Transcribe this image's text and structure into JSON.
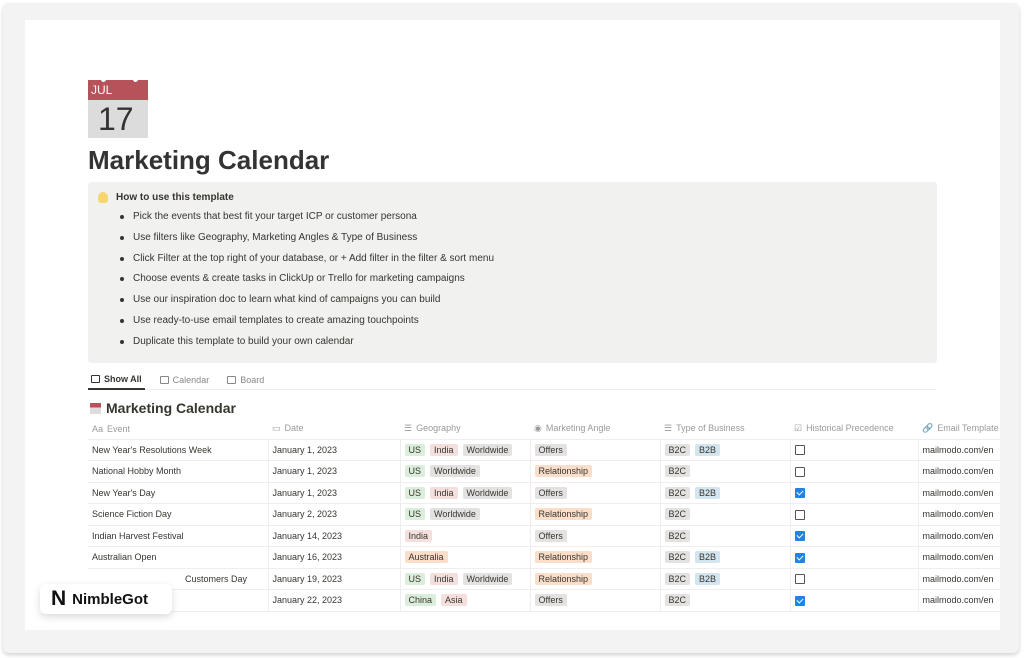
{
  "page": {
    "icon": {
      "name": "calendar-icon",
      "month": "JUL",
      "day": "17"
    },
    "title": "Marketing Calendar"
  },
  "callout": {
    "heading": "How to use this template",
    "items": [
      "Pick the events that best fit your target ICP or customer persona",
      "Use filters like Geography, Marketing Angles & Type of Business",
      "Click Filter at the top right of your database, or + Add filter in the filter & sort menu",
      "Choose events & create tasks in ClickUp or Trello for marketing campaigns",
      "Use our inspiration doc to learn what kind of campaigns you can build",
      "Use ready-to-use email templates to create amazing touchpoints",
      "Duplicate this template to build your own calendar"
    ]
  },
  "tabs": [
    {
      "label": "Show All",
      "active": true
    },
    {
      "label": "Calendar"
    },
    {
      "label": "Board"
    }
  ],
  "database": {
    "title": "Marketing Calendar",
    "columns": [
      "Event",
      "Date",
      "Geography",
      "Marketing Angle",
      "Type of Business",
      "Historical Precedence",
      "Email Template"
    ],
    "rows": [
      {
        "event": "New Year's Resolutions Week",
        "date": "January 1, 2023",
        "geo": [
          "US",
          "India",
          "Worldwide"
        ],
        "angle": "Offers",
        "types": [
          "B2C",
          "B2B"
        ],
        "hist": false,
        "email": "mailmodo.com/en"
      },
      {
        "event": "National Hobby Month",
        "date": "January 1, 2023",
        "geo": [
          "US",
          "Worldwide"
        ],
        "angle": "Relationship",
        "types": [
          "B2C"
        ],
        "hist": false,
        "email": "mailmodo.com/en"
      },
      {
        "event": "New Year's Day",
        "date": "January 1, 2023",
        "geo": [
          "US",
          "India",
          "Worldwide"
        ],
        "angle": "Offers",
        "types": [
          "B2C",
          "B2B"
        ],
        "hist": true,
        "email": "mailmodo.com/en"
      },
      {
        "event": "Science Fiction Day",
        "date": "January 2, 2023",
        "geo": [
          "US",
          "Worldwide"
        ],
        "angle": "Relationship",
        "types": [
          "B2C"
        ],
        "hist": false,
        "email": "mailmodo.com/en"
      },
      {
        "event": "Indian Harvest Festival",
        "date": "January 14, 2023",
        "geo": [
          "India"
        ],
        "angle": "Offers",
        "types": [
          "B2C"
        ],
        "hist": true,
        "email": "mailmodo.com/en"
      },
      {
        "event": "Australian Open",
        "date": "January 16, 2023",
        "geo": [
          "Australia"
        ],
        "angle": "Relationship",
        "types": [
          "B2C",
          "B2B"
        ],
        "hist": true,
        "email": "mailmodo.com/en"
      },
      {
        "event": "Customers Day",
        "date": "January 19, 2023",
        "geo": [
          "US",
          "India",
          "Worldwide"
        ],
        "angle": "Relationship",
        "types": [
          "B2C",
          "B2B"
        ],
        "hist": false,
        "email": "mailmodo.com/en"
      },
      {
        "event": "",
        "date": "January 22, 2023",
        "geo": [
          "China",
          "Asia"
        ],
        "angle": "Offers",
        "types": [
          "B2C"
        ],
        "hist": true,
        "email": "mailmodo.com/en"
      }
    ]
  },
  "tag_colors": {
    "US": "#dbeddb",
    "India": "#f4dfdc",
    "Worldwide": "#e3e2e0",
    "Australia": "#fadec9",
    "China": "#dbeddb",
    "Asia": "#f4dfdc",
    "Offers": "#e3e2e0",
    "Relationship": "#fadec9",
    "B2C": "#e3e2e0",
    "B2B": "#d3e5ef"
  },
  "watermark": {
    "text": "NimbleGot",
    "logo": "N"
  }
}
